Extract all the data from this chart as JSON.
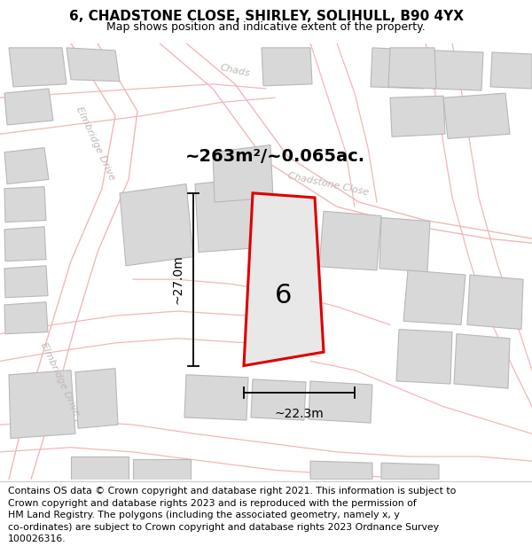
{
  "title": "6, CHADSTONE CLOSE, SHIRLEY, SOLIHULL, B90 4YX",
  "subtitle": "Map shows position and indicative extent of the property.",
  "footer_lines": [
    "Contains OS data © Crown copyright and database right 2021. This information is subject to",
    "Crown copyright and database rights 2023 and is reproduced with the permission of",
    "HM Land Registry. The polygons (including the associated geometry, namely x, y",
    "co-ordinates) are subject to Crown copyright and database rights 2023 Ordnance Survey",
    "100026316."
  ],
  "area_text": "~263m²/~0.065ac.",
  "width_label": "~22.3m",
  "height_label": "~27.0m",
  "house_number": "6",
  "map_bg": "#f7f6f4",
  "street_line_color": "#f0b8b8",
  "road_outline_color": "#e0c8c8",
  "building_fill": "#d8d8d8",
  "building_edge": "#b8b8b8",
  "plot_fill": "#e8e8e8",
  "plot_edge": "#dd0000",
  "title_fontsize": 11,
  "subtitle_fontsize": 9,
  "footer_fontsize": 7.8,
  "road_label_color": "#c0b8b8",
  "title_bg": "#ffffff",
  "footer_bg": "#f0efed"
}
